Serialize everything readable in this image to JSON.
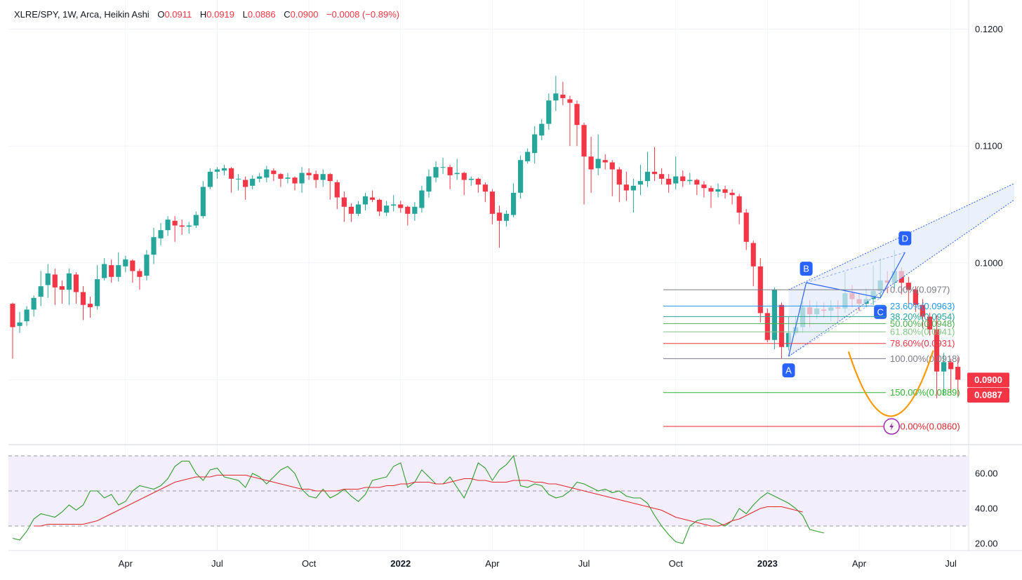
{
  "header": {
    "symbol": "XLRE/SPY, 1W, Arca, Heikin Ashi",
    "o_label": "O",
    "o_value": "0.0911",
    "h_label": "H",
    "h_value": "0.0919",
    "l_label": "L",
    "l_value": "0.0886",
    "c_label": "C",
    "c_value": "0.0900",
    "change": "−0.0008 (−0.89%)"
  },
  "colors": {
    "up": "#26a69a",
    "down": "#f23645",
    "grid": "#f0f3fa",
    "rsi": "#2e9d2e",
    "rsi_ma": "#e0282e",
    "pattern": "#2962ff",
    "pattern_fill": "#e3ebfb",
    "curve": "#ff9800",
    "bolt": "#9c27b0"
  },
  "chart_data": [
    {
      "type": "candlestick",
      "title": "XLRE/SPY, 1W, Arca, Heikin Ashi",
      "ylim": [
        0.0845,
        0.1225
      ],
      "y_ticks": [
        "0.1200",
        "0.1100",
        "0.1000"
      ],
      "x_ticks": [
        {
          "label": "Apr",
          "week": 16,
          "bold": false
        },
        {
          "label": "Jul",
          "week": 29,
          "bold": false
        },
        {
          "label": "Oct",
          "week": 42,
          "bold": false
        },
        {
          "label": "2022",
          "week": 55,
          "bold": true
        },
        {
          "label": "Apr",
          "week": 68,
          "bold": false
        },
        {
          "label": "Jul",
          "week": 81,
          "bold": false
        },
        {
          "label": "Oct",
          "week": 94,
          "bold": false
        },
        {
          "label": "2023",
          "week": 107,
          "bold": true
        },
        {
          "label": "Apr",
          "week": 120,
          "bold": false
        },
        {
          "label": "Jul",
          "week": 133,
          "bold": false
        }
      ],
      "candles": [
        [
          0.0965,
          0.0945,
          0.0966,
          0.0918
        ],
        [
          0.0946,
          0.0949,
          0.0958,
          0.094
        ],
        [
          0.095,
          0.096,
          0.0963,
          0.0946
        ],
        [
          0.096,
          0.097,
          0.0972,
          0.0954
        ],
        [
          0.0971,
          0.098,
          0.0993,
          0.0963
        ],
        [
          0.0981,
          0.0991,
          0.0999,
          0.097
        ],
        [
          0.099,
          0.0979,
          0.0995,
          0.0964
        ],
        [
          0.098,
          0.0977,
          0.0985,
          0.0965
        ],
        [
          0.0977,
          0.0991,
          0.0995,
          0.0964
        ],
        [
          0.099,
          0.0975,
          0.0992,
          0.0965
        ],
        [
          0.0975,
          0.0964,
          0.098,
          0.0951
        ],
        [
          0.0965,
          0.0962,
          0.0971,
          0.0953
        ],
        [
          0.0963,
          0.0986,
          0.0998,
          0.096
        ],
        [
          0.0987,
          0.0999,
          0.1004,
          0.0985
        ],
        [
          0.0998,
          0.0988,
          0.1003,
          0.0983
        ],
        [
          0.0988,
          0.0998,
          0.1009,
          0.0984
        ],
        [
          0.0997,
          0.1003,
          0.1006,
          0.0992
        ],
        [
          0.1002,
          0.0993,
          0.1003,
          0.0983
        ],
        [
          0.0993,
          0.0988,
          0.0995,
          0.0977
        ],
        [
          0.0989,
          0.1007,
          0.1011,
          0.0985
        ],
        [
          0.1007,
          0.1022,
          0.103,
          0.0999
        ],
        [
          0.1021,
          0.1028,
          0.1034,
          0.1015
        ],
        [
          0.1028,
          0.1037,
          0.104,
          0.1023
        ],
        [
          0.1036,
          0.1032,
          0.104,
          0.1018
        ],
        [
          0.1032,
          0.1031,
          0.1037,
          0.1024
        ],
        [
          0.1031,
          0.1032,
          0.1035,
          0.1025
        ],
        [
          0.1032,
          0.1041,
          0.1044,
          0.103
        ],
        [
          0.104,
          0.1065,
          0.107,
          0.1038
        ],
        [
          0.1065,
          0.1078,
          0.1081,
          0.1063
        ],
        [
          0.1078,
          0.108,
          0.1082,
          0.1072
        ],
        [
          0.1079,
          0.1081,
          0.1084,
          0.1075
        ],
        [
          0.1081,
          0.1072,
          0.1082,
          0.106
        ],
        [
          0.1072,
          0.1072,
          0.1076,
          0.1062
        ],
        [
          0.1071,
          0.1065,
          0.1074,
          0.1054
        ],
        [
          0.1066,
          0.1072,
          0.1075,
          0.1063
        ],
        [
          0.1072,
          0.1074,
          0.1077,
          0.1069
        ],
        [
          0.1073,
          0.108,
          0.1083,
          0.1069
        ],
        [
          0.1079,
          0.1076,
          0.1081,
          0.107
        ],
        [
          0.1076,
          0.1072,
          0.1077,
          0.1065
        ],
        [
          0.1072,
          0.1073,
          0.1077,
          0.1068
        ],
        [
          0.1073,
          0.1068,
          0.1074,
          0.1062
        ],
        [
          0.1068,
          0.1077,
          0.1082,
          0.106
        ],
        [
          0.1077,
          0.1075,
          0.1081,
          0.1071
        ],
        [
          0.1076,
          0.1071,
          0.1079,
          0.1064
        ],
        [
          0.1071,
          0.1076,
          0.108,
          0.1065
        ],
        [
          0.1076,
          0.107,
          0.1077,
          0.1054
        ],
        [
          0.1069,
          0.1056,
          0.1071,
          0.1046
        ],
        [
          0.1056,
          0.1048,
          0.1061,
          0.1035
        ],
        [
          0.1048,
          0.1042,
          0.1051,
          0.1035
        ],
        [
          0.1042,
          0.105,
          0.1053,
          0.104
        ],
        [
          0.105,
          0.1057,
          0.106,
          0.1045
        ],
        [
          0.1056,
          0.1054,
          0.1062,
          0.1052
        ],
        [
          0.1054,
          0.1044,
          0.1055,
          0.104
        ],
        [
          0.1043,
          0.1049,
          0.1053,
          0.104
        ],
        [
          0.1049,
          0.105,
          0.1058,
          0.1044
        ],
        [
          0.105,
          0.1047,
          0.1053,
          0.1043
        ],
        [
          0.1048,
          0.1042,
          0.1049,
          0.1032
        ],
        [
          0.1042,
          0.1048,
          0.1052,
          0.1036
        ],
        [
          0.1047,
          0.1062,
          0.1066,
          0.1043
        ],
        [
          0.1061,
          0.1074,
          0.108,
          0.1056
        ],
        [
          0.1073,
          0.1082,
          0.1087,
          0.1069
        ],
        [
          0.1082,
          0.1082,
          0.109,
          0.1076
        ],
        [
          0.1082,
          0.1075,
          0.1084,
          0.1063
        ],
        [
          0.1076,
          0.1077,
          0.1089,
          0.1071
        ],
        [
          0.1077,
          0.1071,
          0.1078,
          0.1058
        ],
        [
          0.1071,
          0.1072,
          0.1074,
          0.1066
        ],
        [
          0.1072,
          0.1067,
          0.1073,
          0.106
        ],
        [
          0.1067,
          0.1061,
          0.1069,
          0.1052
        ],
        [
          0.1061,
          0.1042,
          0.1063,
          0.1033
        ],
        [
          0.1043,
          0.1036,
          0.1049,
          0.1013
        ],
        [
          0.1036,
          0.1042,
          0.1045,
          0.1031
        ],
        [
          0.1041,
          0.106,
          0.1068,
          0.1039
        ],
        [
          0.106,
          0.1088,
          0.1092,
          0.1055
        ],
        [
          0.1087,
          0.1095,
          0.1098,
          0.1085
        ],
        [
          0.1094,
          0.111,
          0.1117,
          0.1085
        ],
        [
          0.1109,
          0.1119,
          0.1123,
          0.1105
        ],
        [
          0.1119,
          0.1139,
          0.1145,
          0.1114
        ],
        [
          0.1139,
          0.1145,
          0.116,
          0.113
        ],
        [
          0.1144,
          0.1141,
          0.1155,
          0.1135
        ],
        [
          0.114,
          0.1137,
          0.1143,
          0.11
        ],
        [
          0.1136,
          0.1118,
          0.1139,
          0.11
        ],
        [
          0.1118,
          0.1091,
          0.112,
          0.105
        ],
        [
          0.1091,
          0.108,
          0.1108,
          0.106
        ],
        [
          0.1081,
          0.1089,
          0.111,
          0.1075
        ],
        [
          0.1088,
          0.1086,
          0.1093,
          0.108
        ],
        [
          0.1086,
          0.108,
          0.1088,
          0.1057
        ],
        [
          0.108,
          0.1067,
          0.1082,
          0.1052
        ],
        [
          0.1067,
          0.1062,
          0.1078,
          0.1053
        ],
        [
          0.1062,
          0.1066,
          0.1072,
          0.1043
        ],
        [
          0.1067,
          0.107,
          0.1084,
          0.1058
        ],
        [
          0.107,
          0.1078,
          0.1095,
          0.1065
        ],
        [
          0.1078,
          0.1076,
          0.1099,
          0.107
        ],
        [
          0.1076,
          0.1072,
          0.1081,
          0.1067
        ],
        [
          0.1072,
          0.1067,
          0.1076,
          0.106
        ],
        [
          0.1068,
          0.1074,
          0.1091,
          0.1063
        ],
        [
          0.1074,
          0.107,
          0.1079,
          0.1065
        ],
        [
          0.107,
          0.1071,
          0.1077,
          0.1067
        ],
        [
          0.1071,
          0.1067,
          0.1072,
          0.1058
        ],
        [
          0.1067,
          0.1064,
          0.107,
          0.1056
        ],
        [
          0.1064,
          0.1061,
          0.1066,
          0.1047
        ],
        [
          0.1061,
          0.1063,
          0.1068,
          0.1056
        ],
        [
          0.1063,
          0.106,
          0.1066,
          0.1055
        ],
        [
          0.106,
          0.1058,
          0.1063,
          0.105
        ],
        [
          0.1057,
          0.1043,
          0.1059,
          0.1033
        ],
        [
          0.1043,
          0.1018,
          0.1046,
          0.1011
        ],
        [
          0.1017,
          0.0997,
          0.1019,
          0.098
        ],
        [
          0.0997,
          0.0957,
          0.1004,
          0.0949
        ],
        [
          0.0957,
          0.0934,
          0.0961,
          0.0932
        ],
        [
          0.0934,
          0.0977,
          0.0979,
          0.0926
        ],
        [
          0.0964,
          0.0928,
          0.0966,
          0.0918
        ],
        [
          0.0928,
          0.094,
          0.0954,
          0.0925
        ],
        [
          0.094,
          0.0945,
          0.0955,
          0.0938
        ],
        [
          0.0945,
          0.0962,
          0.0967,
          0.094
        ],
        [
          0.0962,
          0.0956,
          0.0968,
          0.0945
        ],
        [
          0.0956,
          0.0961,
          0.0967,
          0.0952
        ],
        [
          0.096,
          0.0959,
          0.0966,
          0.0953
        ],
        [
          0.0959,
          0.0962,
          0.0968,
          0.095
        ],
        [
          0.0962,
          0.0961,
          0.0968,
          0.095
        ],
        [
          0.0961,
          0.0974,
          0.0992,
          0.0957
        ],
        [
          0.0974,
          0.0969,
          0.0981,
          0.0962
        ],
        [
          0.0969,
          0.0965,
          0.0974,
          0.0959
        ],
        [
          0.0965,
          0.0969,
          0.0978,
          0.0962
        ],
        [
          0.0969,
          0.0976,
          0.0998,
          0.0964
        ],
        [
          0.0976,
          0.0985,
          0.1004,
          0.0971
        ],
        [
          0.0985,
          0.0983,
          0.0993,
          0.0974
        ],
        [
          0.0983,
          0.0993,
          0.1011,
          0.0978
        ],
        [
          0.0993,
          0.0983,
          0.0996,
          0.0973
        ],
        [
          0.0983,
          0.0977,
          0.0988,
          0.0965
        ],
        [
          0.0977,
          0.0964,
          0.098,
          0.0958
        ],
        [
          0.0964,
          0.0954,
          0.0969,
          0.0944
        ],
        [
          0.0954,
          0.0943,
          0.0957,
          0.0938
        ],
        [
          0.0943,
          0.0907,
          0.0955,
          0.0884
        ],
        [
          0.0907,
          0.0915,
          0.0923,
          0.0887
        ],
        [
          0.0915,
          0.0909,
          0.0918,
          0.0888
        ],
        [
          0.0911,
          0.09,
          0.0919,
          0.0886
        ]
      ],
      "fib_levels": [
        {
          "label": "0.00%(0.0977)",
          "value": 0.0977,
          "color": "#787b86"
        },
        {
          "label": "23.60%(0.0963)",
          "value": 0.0963,
          "color": "#2196f3"
        },
        {
          "label": "38.20%(0.0954)",
          "value": 0.0954,
          "color": "#26a69a"
        },
        {
          "label": "50.00%(0.0948)",
          "value": 0.0948,
          "color": "#4caf50"
        },
        {
          "label": "61.80%(0.0941)",
          "value": 0.0941,
          "color": "#81c784"
        },
        {
          "label": "78.60%(0.0931)",
          "value": 0.0931,
          "color": "#f23645"
        },
        {
          "label": "100.00%(0.0918)",
          "value": 0.0918,
          "color": "#787b86"
        },
        {
          "label": "150.00%(0.0889)",
          "value": 0.0889,
          "color": "#2fb52f"
        },
        {
          "label": "200.00%(0.0860)",
          "value": 0.086,
          "color": "#e0282e"
        }
      ],
      "abcd": [
        {
          "label": "A",
          "week": 110,
          "value": 0.092
        },
        {
          "label": "B",
          "week": 112.5,
          "value": 0.0983
        },
        {
          "label": "C",
          "week": 123,
          "value": 0.097
        },
        {
          "label": "D",
          "week": 126.5,
          "value": 0.1009
        }
      ],
      "price_tags": [
        {
          "label": "0.0900",
          "value": 0.09
        },
        {
          "label": "0.0887",
          "value": 0.0887
        }
      ]
    },
    {
      "type": "line",
      "title": "RSI",
      "ylim": [
        16,
        74
      ],
      "y_ticks": [
        60,
        40,
        20
      ],
      "bands": [
        70,
        50,
        30
      ],
      "series": [
        {
          "values": [
            23,
            22,
            27,
            34,
            37,
            36,
            35,
            38,
            42,
            39,
            42,
            50,
            50,
            46,
            48,
            42,
            44,
            50,
            53,
            52,
            51,
            53,
            57,
            64,
            67,
            67,
            60,
            56,
            62,
            63,
            58,
            57,
            56,
            52,
            60,
            58,
            54,
            58,
            62,
            64,
            60,
            51,
            47,
            46,
            51,
            46,
            48,
            51,
            47,
            44,
            48,
            56,
            57,
            58,
            64,
            66,
            52,
            55,
            62,
            58,
            54,
            54,
            58,
            52,
            46,
            55,
            66,
            63,
            56,
            62,
            65,
            70,
            53,
            52,
            54,
            53,
            48,
            46,
            47,
            50,
            55,
            54,
            52,
            50,
            51,
            49,
            50,
            47,
            46,
            46,
            43,
            36,
            30,
            25,
            21,
            20,
            30,
            33,
            34,
            34,
            32,
            30,
            33,
            40,
            37,
            42,
            46,
            49,
            47,
            45,
            43,
            40,
            36,
            28,
            27,
            26
          ]
        },
        {
          "values": [
            30,
            30,
            31,
            31,
            31,
            31,
            31,
            31,
            32,
            33,
            35,
            37,
            39,
            41,
            43,
            45,
            47,
            49,
            51,
            53,
            55,
            56,
            57,
            58,
            58,
            58,
            59,
            59,
            59,
            59,
            59,
            58,
            57,
            56,
            55,
            54,
            53,
            52,
            51,
            51,
            50,
            50,
            50,
            50,
            51,
            51,
            51,
            52,
            52,
            52,
            53,
            53,
            54,
            54,
            55,
            55,
            55,
            54,
            54,
            55,
            56,
            57,
            57,
            56,
            56,
            55,
            55,
            55,
            56,
            56,
            56,
            55,
            55,
            54,
            54,
            53,
            52,
            51,
            50,
            49,
            48,
            47,
            46,
            45,
            44,
            43,
            42,
            41,
            40,
            39,
            37,
            35,
            34,
            33,
            32,
            31,
            30,
            30,
            31,
            33,
            34,
            36,
            38,
            40,
            41,
            41,
            41,
            40,
            39,
            38
          ]
        }
      ]
    }
  ]
}
